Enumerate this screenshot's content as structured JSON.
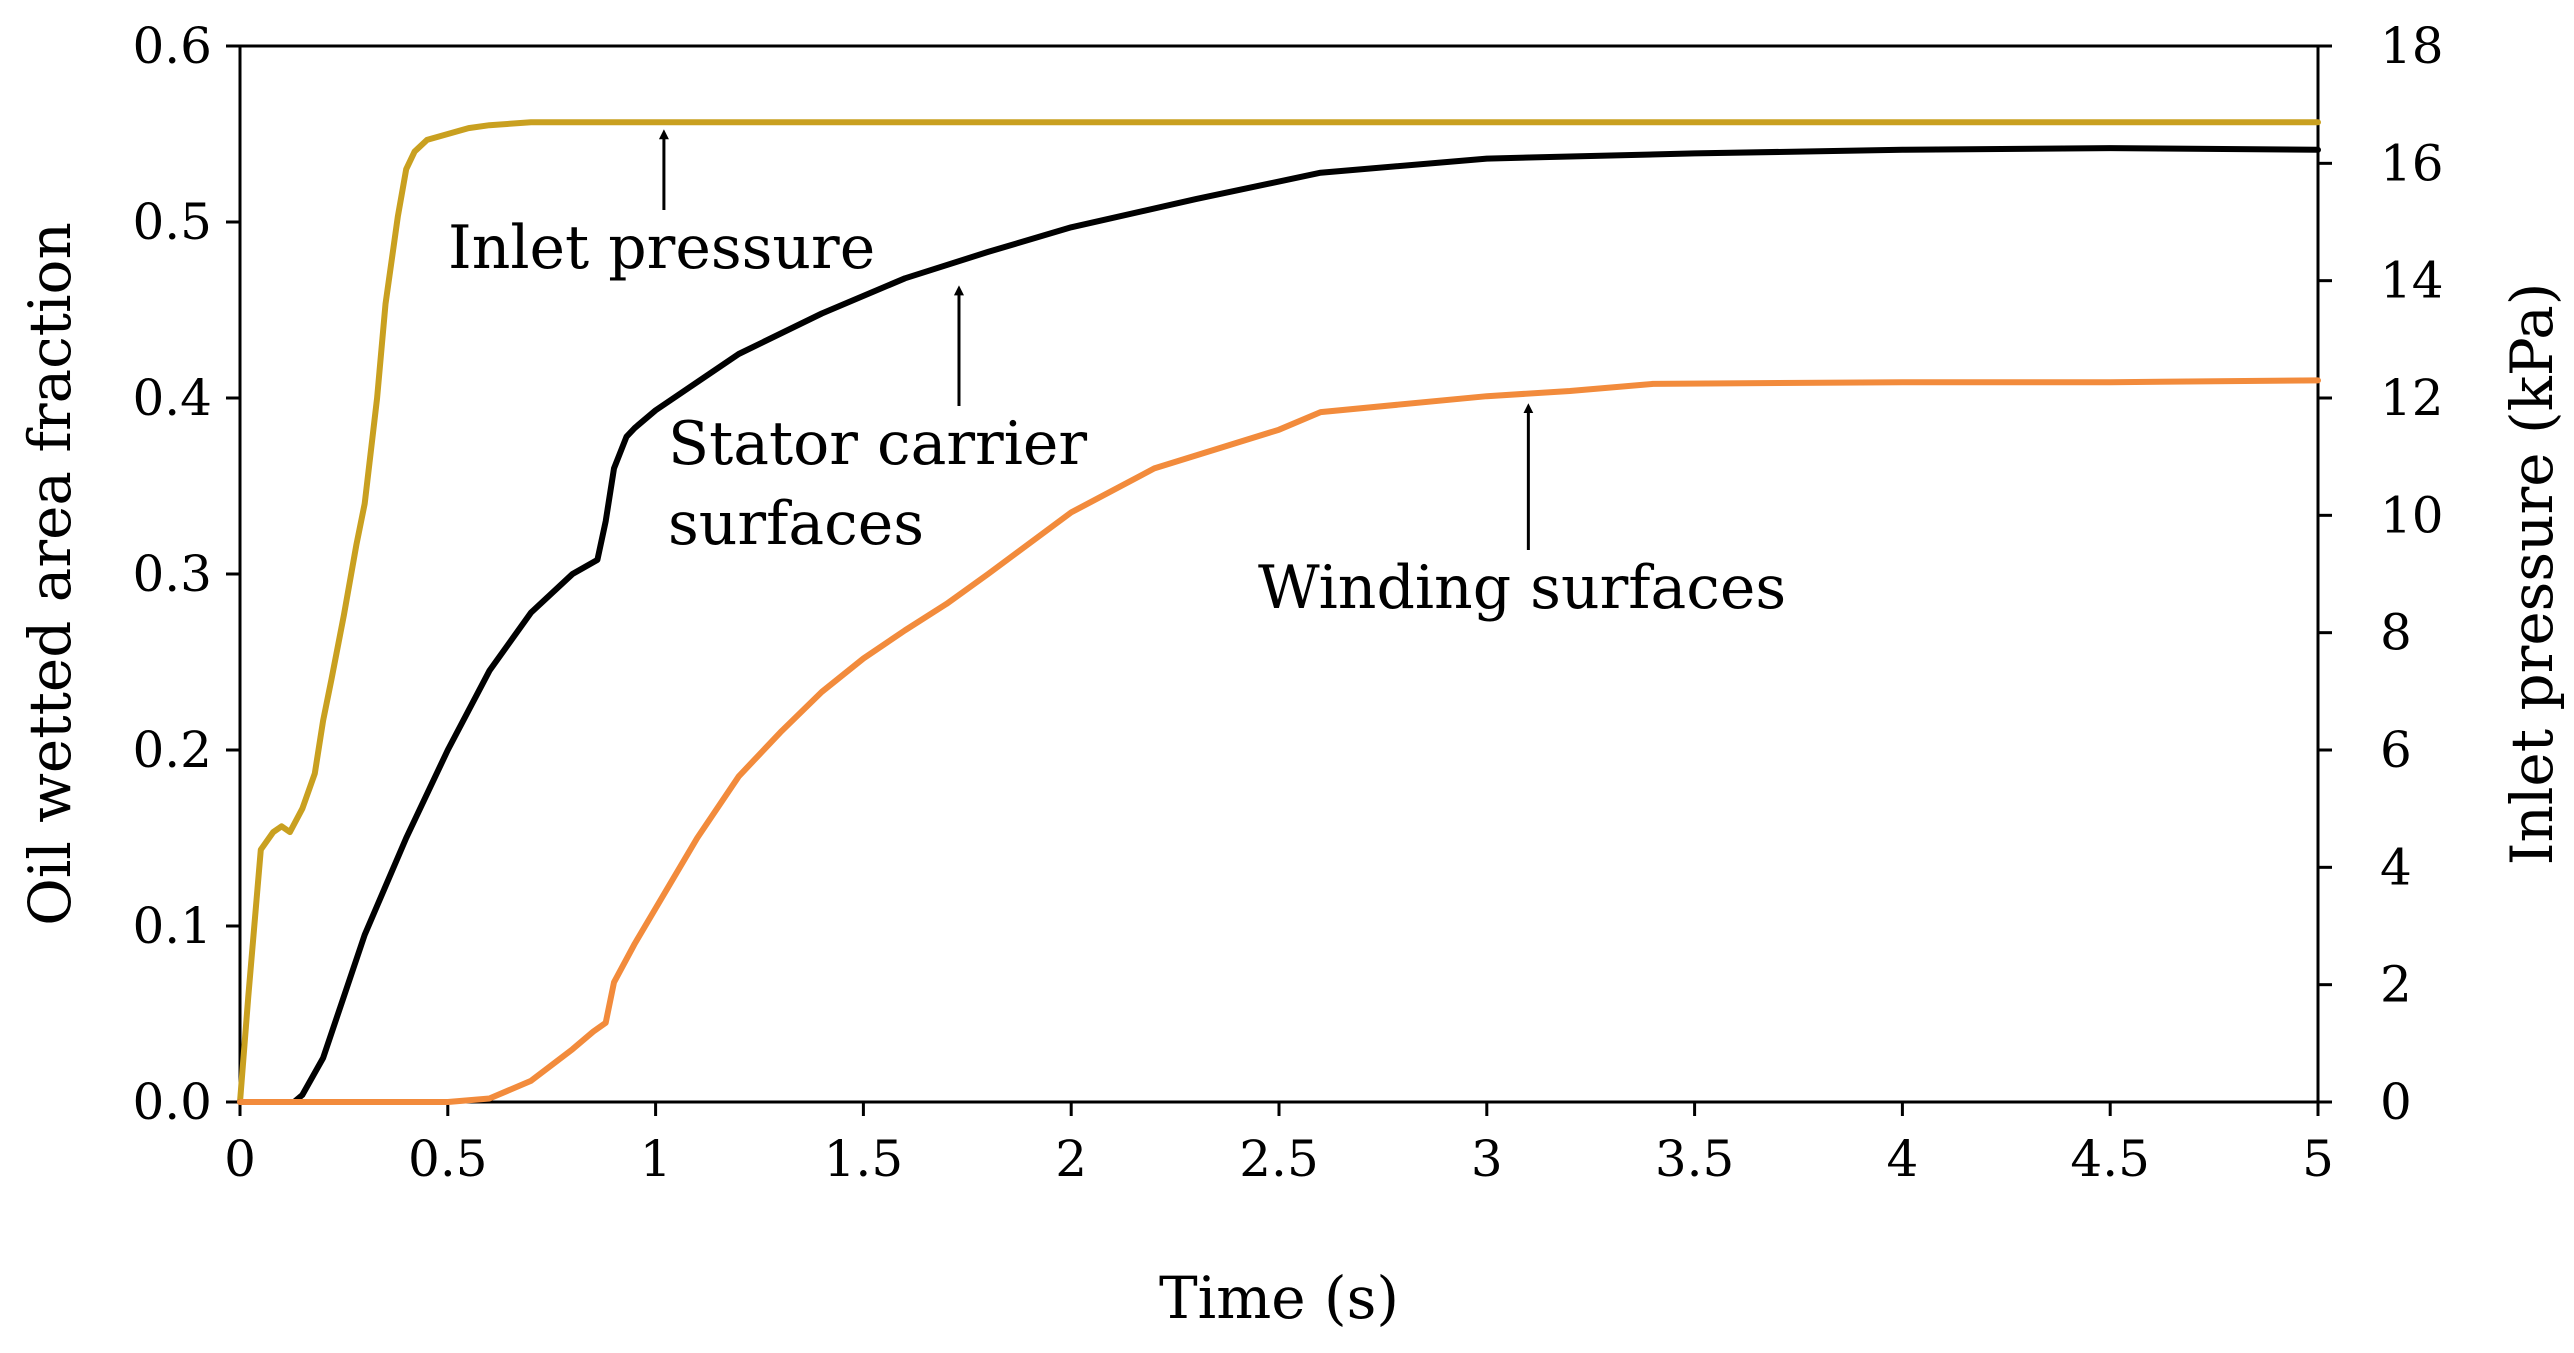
{
  "chart_data": {
    "type": "line",
    "xlabel": "Time (s)",
    "ylabel": "Oil wetted area fraction",
    "y2label": "Inlet pressure (kPa)",
    "xlim": [
      0,
      5
    ],
    "ylim": [
      0,
      0.6
    ],
    "y2lim": [
      0,
      18
    ],
    "x_ticks": [
      "0",
      "0.5",
      "1",
      "1.5",
      "2",
      "2.5",
      "3",
      "3.5",
      "4",
      "4.5",
      "5"
    ],
    "y_ticks": [
      "0.0",
      "0.1",
      "0.2",
      "0.3",
      "0.4",
      "0.5",
      "0.6"
    ],
    "y2_ticks": [
      "0",
      "2",
      "4",
      "6",
      "8",
      "10",
      "12",
      "14",
      "16",
      "18"
    ],
    "grid": false,
    "legend": "none",
    "series": [
      {
        "name": "Inlet pressure",
        "axis": "right",
        "color": "#C9A020",
        "x": [
          0,
          0.02,
          0.05,
          0.08,
          0.1,
          0.12,
          0.15,
          0.18,
          0.2,
          0.22,
          0.25,
          0.28,
          0.3,
          0.33,
          0.35,
          0.38,
          0.4,
          0.42,
          0.45,
          0.5,
          0.55,
          0.6,
          0.7,
          0.8,
          1.0,
          1.5,
          2.0,
          3.0,
          4.0,
          5.0
        ],
        "y": [
          0,
          1.8,
          4.3,
          4.6,
          4.7,
          4.6,
          5.0,
          5.6,
          6.5,
          7.2,
          8.3,
          9.5,
          10.2,
          12.0,
          13.6,
          15.1,
          15.9,
          16.2,
          16.4,
          16.5,
          16.6,
          16.65,
          16.7,
          16.7,
          16.7,
          16.7,
          16.7,
          16.7,
          16.7,
          16.7
        ]
      },
      {
        "name": "Stator carrier surfaces",
        "axis": "left",
        "color": "#000000",
        "x": [
          0,
          0.13,
          0.15,
          0.2,
          0.25,
          0.3,
          0.4,
          0.5,
          0.6,
          0.7,
          0.8,
          0.86,
          0.88,
          0.9,
          0.93,
          0.95,
          1.0,
          1.2,
          1.4,
          1.6,
          1.8,
          2.0,
          2.3,
          2.6,
          3.0,
          3.5,
          4.0,
          4.5,
          5.0
        ],
        "y": [
          0,
          0,
          0.004,
          0.025,
          0.06,
          0.095,
          0.15,
          0.2,
          0.245,
          0.278,
          0.3,
          0.308,
          0.33,
          0.36,
          0.378,
          0.383,
          0.393,
          0.425,
          0.448,
          0.468,
          0.483,
          0.497,
          0.513,
          0.528,
          0.536,
          0.539,
          0.541,
          0.542,
          0.541
        ]
      },
      {
        "name": "Winding surfaces",
        "axis": "left",
        "color": "#F28B3C",
        "x": [
          0,
          0.5,
          0.6,
          0.7,
          0.8,
          0.85,
          0.88,
          0.9,
          0.95,
          1.0,
          1.1,
          1.2,
          1.3,
          1.4,
          1.5,
          1.6,
          1.7,
          1.8,
          2.0,
          2.2,
          2.5,
          2.6,
          3.0,
          3.2,
          3.4,
          4.0,
          4.5,
          5.0
        ],
        "y": [
          0,
          0,
          0.002,
          0.012,
          0.03,
          0.04,
          0.045,
          0.068,
          0.09,
          0.11,
          0.15,
          0.185,
          0.21,
          0.233,
          0.252,
          0.268,
          0.283,
          0.3,
          0.335,
          0.36,
          0.382,
          0.392,
          0.401,
          0.404,
          0.408,
          0.409,
          0.409,
          0.41
        ]
      }
    ],
    "annotations": [
      {
        "lines": [
          "Inlet pressure"
        ],
        "arrow_to": {
          "x": 1.02,
          "y2": 16.7
        }
      },
      {
        "lines": [
          "Stator carrier",
          "surfaces"
        ],
        "arrow_to": {
          "x": 1.73,
          "y": 0.468
        }
      },
      {
        "lines": [
          "Winding surfaces"
        ],
        "arrow_to": {
          "x": 3.1,
          "y": 0.401
        }
      }
    ]
  }
}
